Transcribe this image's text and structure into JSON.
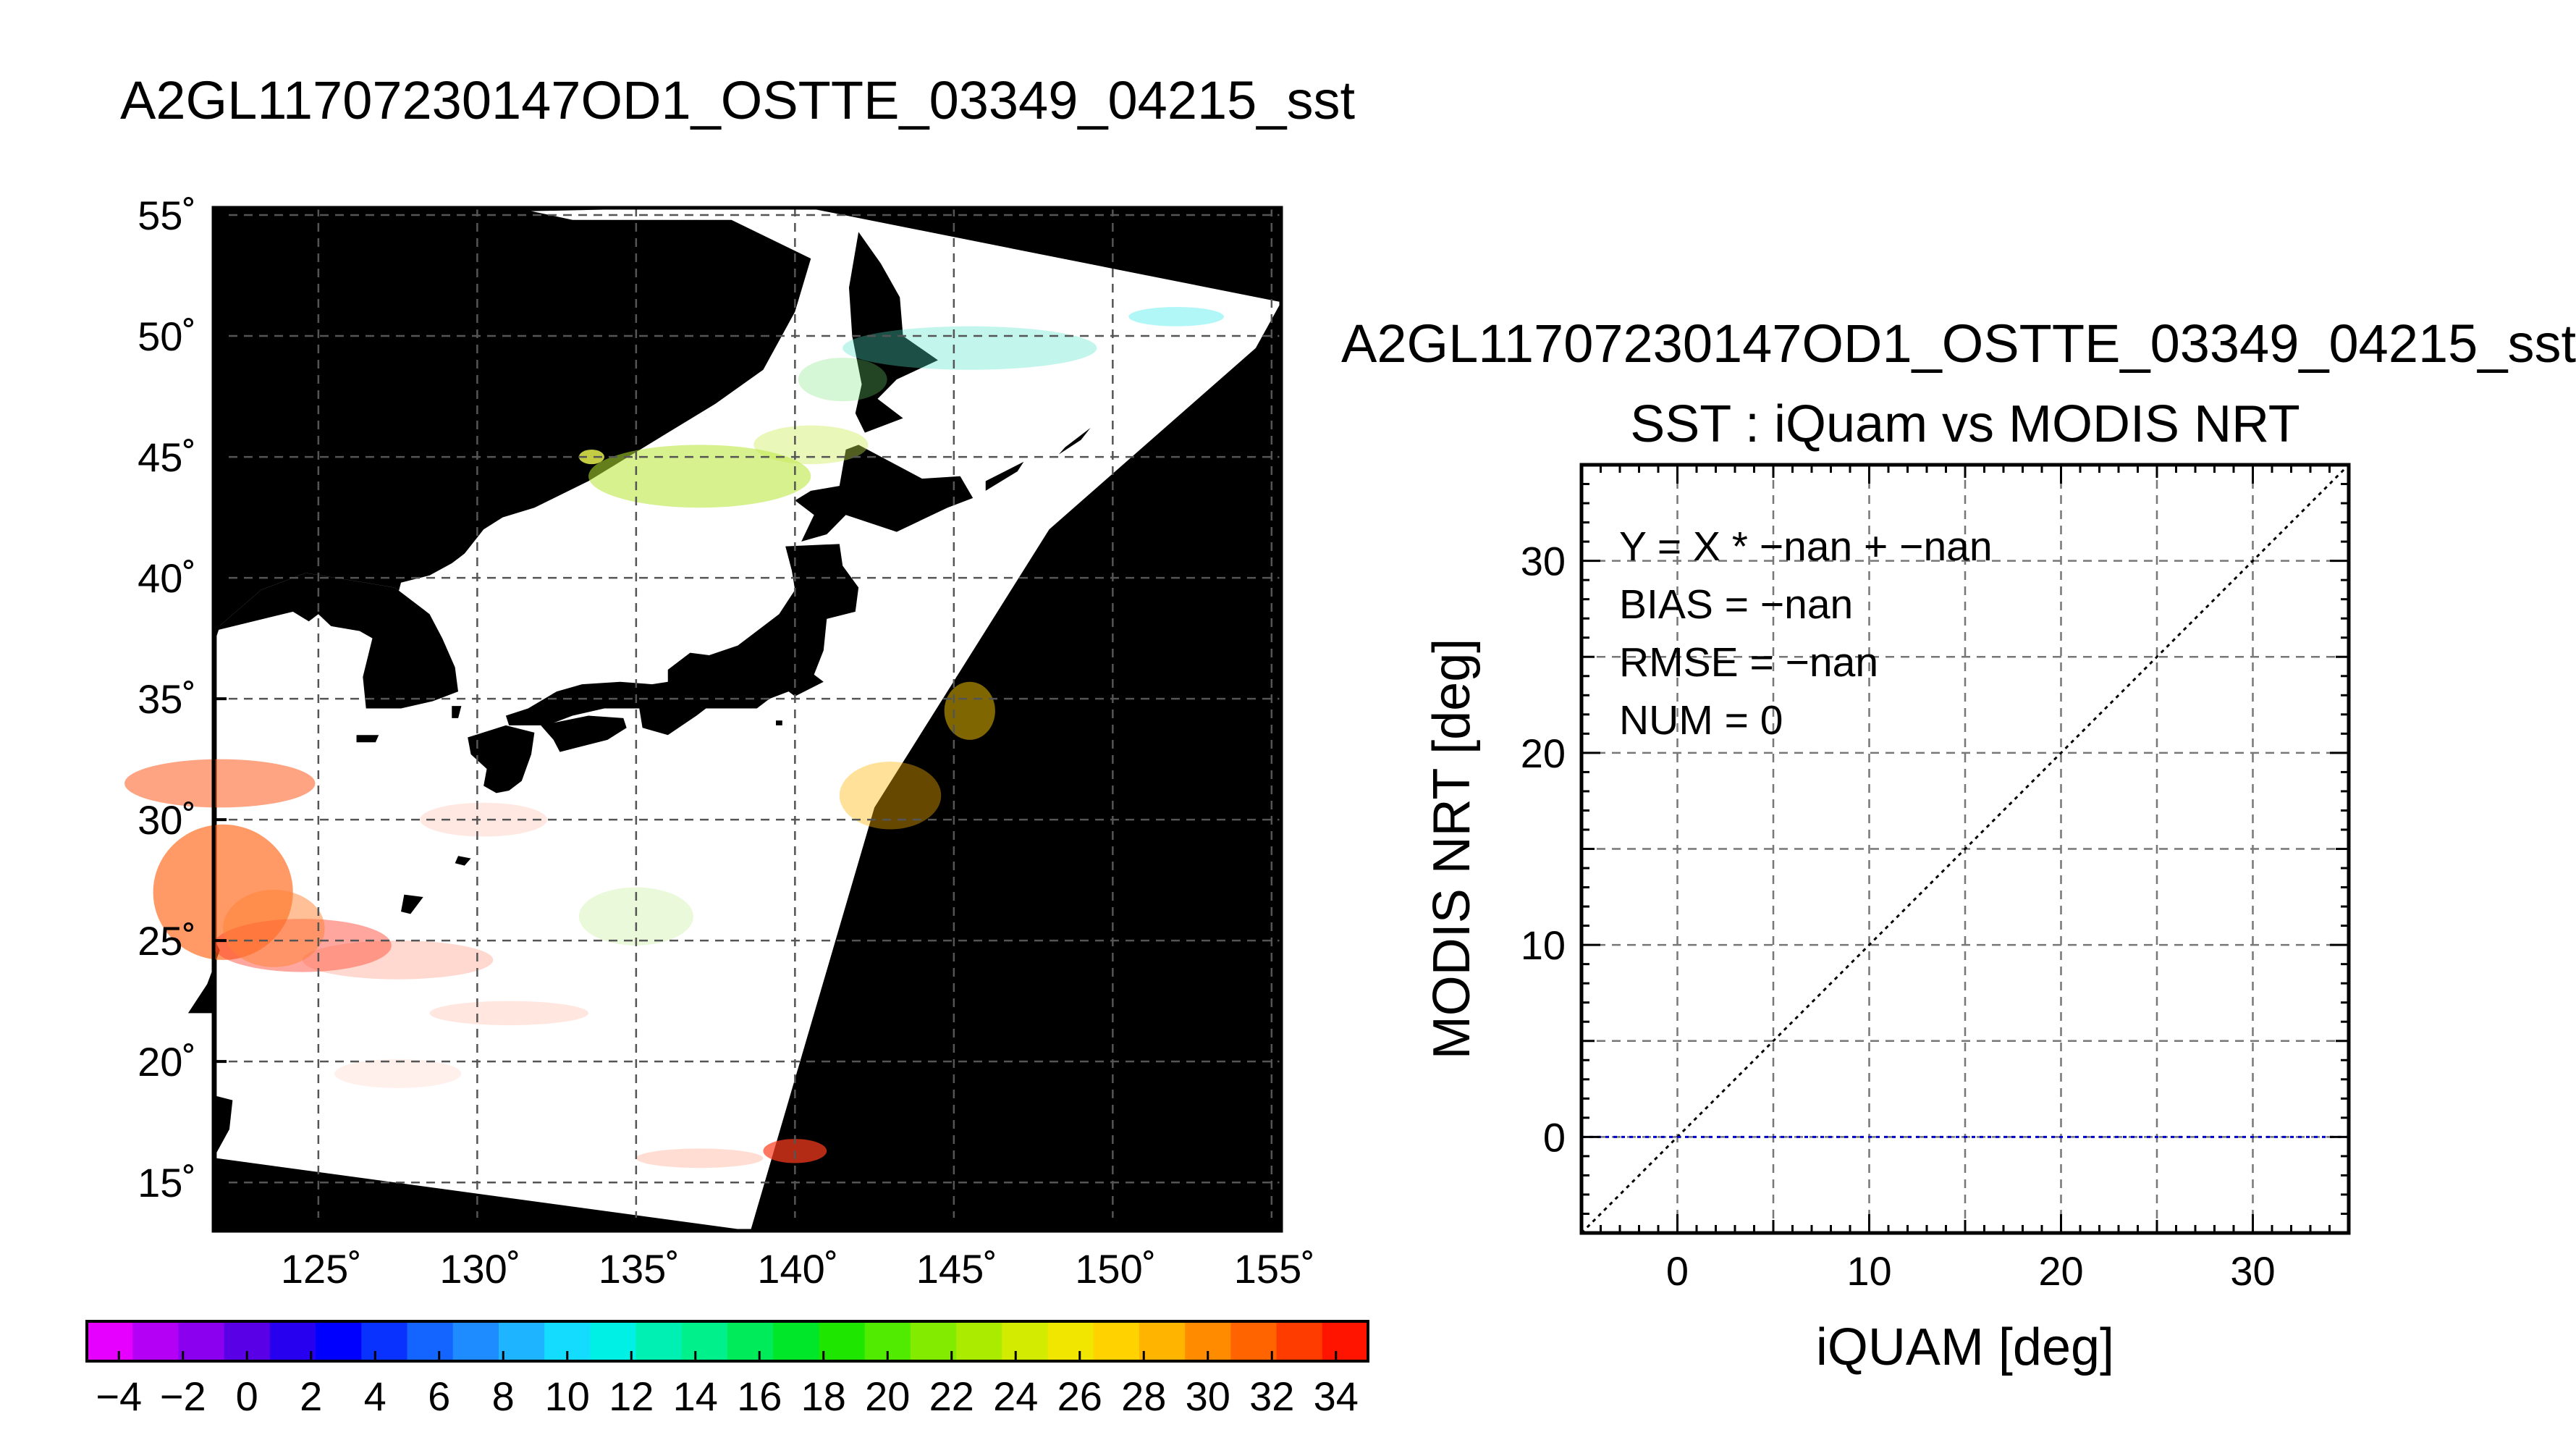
{
  "map": {
    "title": "A2GL11707230147OD1_OSTTE_03349_04215_sst",
    "lon_ticks": [
      "125˚",
      "130˚",
      "135˚",
      "140˚",
      "145˚",
      "150˚",
      "155˚"
    ],
    "lat_ticks": [
      "55˚",
      "50˚",
      "45˚",
      "40˚",
      "35˚",
      "30˚",
      "25˚",
      "20˚",
      "15˚"
    ],
    "lon_range": [
      121.7,
      155.3
    ],
    "lat_range": [
      13.0,
      55.3
    ],
    "colorbar": {
      "labels": [
        "−4",
        "−2",
        "0",
        "2",
        "4",
        "6",
        "8",
        "10",
        "12",
        "14",
        "16",
        "18",
        "20",
        "22",
        "24",
        "26",
        "28",
        "30",
        "32",
        "34"
      ],
      "range": [
        -5,
        35
      ],
      "colors": [
        "#e600ff",
        "#b400f5",
        "#8c00f0",
        "#5a00e6",
        "#2800f0",
        "#0000ff",
        "#0a32ff",
        "#1464ff",
        "#1e8cff",
        "#1eb4ff",
        "#14dcff",
        "#00f0e6",
        "#00f0b4",
        "#00f08c",
        "#00eb5a",
        "#00e628",
        "#1ee600",
        "#50eb00",
        "#82eb00",
        "#aaeb00",
        "#d2eb00",
        "#f0e600",
        "#ffd200",
        "#ffb400",
        "#ff8c00",
        "#ff6400",
        "#ff3c00",
        "#ff1400"
      ]
    },
    "colors": {
      "land": "#000000",
      "swath": "#ffffff",
      "off_swath": "#000000",
      "grid": "#555555"
    }
  },
  "scatter": {
    "figure_title": "A2GL11707230147OD1_OSTTE_03349_04215_sst",
    "axes_title": "SST : iQuam vs MODIS NRT",
    "stats": [
      "Y = X * −nan + −nan",
      "BIAS = −nan",
      "RMSE = −nan",
      "NUM = 0"
    ]
  },
  "chart_data": {
    "type": "scatter",
    "title": "SST : iQuam vs MODIS NRT",
    "xlabel": "iQUAM [deg]",
    "ylabel": "MODIS NRT [deg]",
    "xlim": [
      -5,
      35
    ],
    "ylim": [
      -5,
      35
    ],
    "x_ticks": [
      "0",
      "10",
      "20",
      "30"
    ],
    "y_ticks": [
      "0",
      "10",
      "20",
      "30"
    ],
    "grid": true,
    "series": [],
    "reference_lines": [
      {
        "kind": "y=x",
        "style": "dotted",
        "color": "#000000"
      },
      {
        "kind": "y=0",
        "style": "dotted",
        "color": "#0000cc"
      }
    ],
    "points": []
  }
}
